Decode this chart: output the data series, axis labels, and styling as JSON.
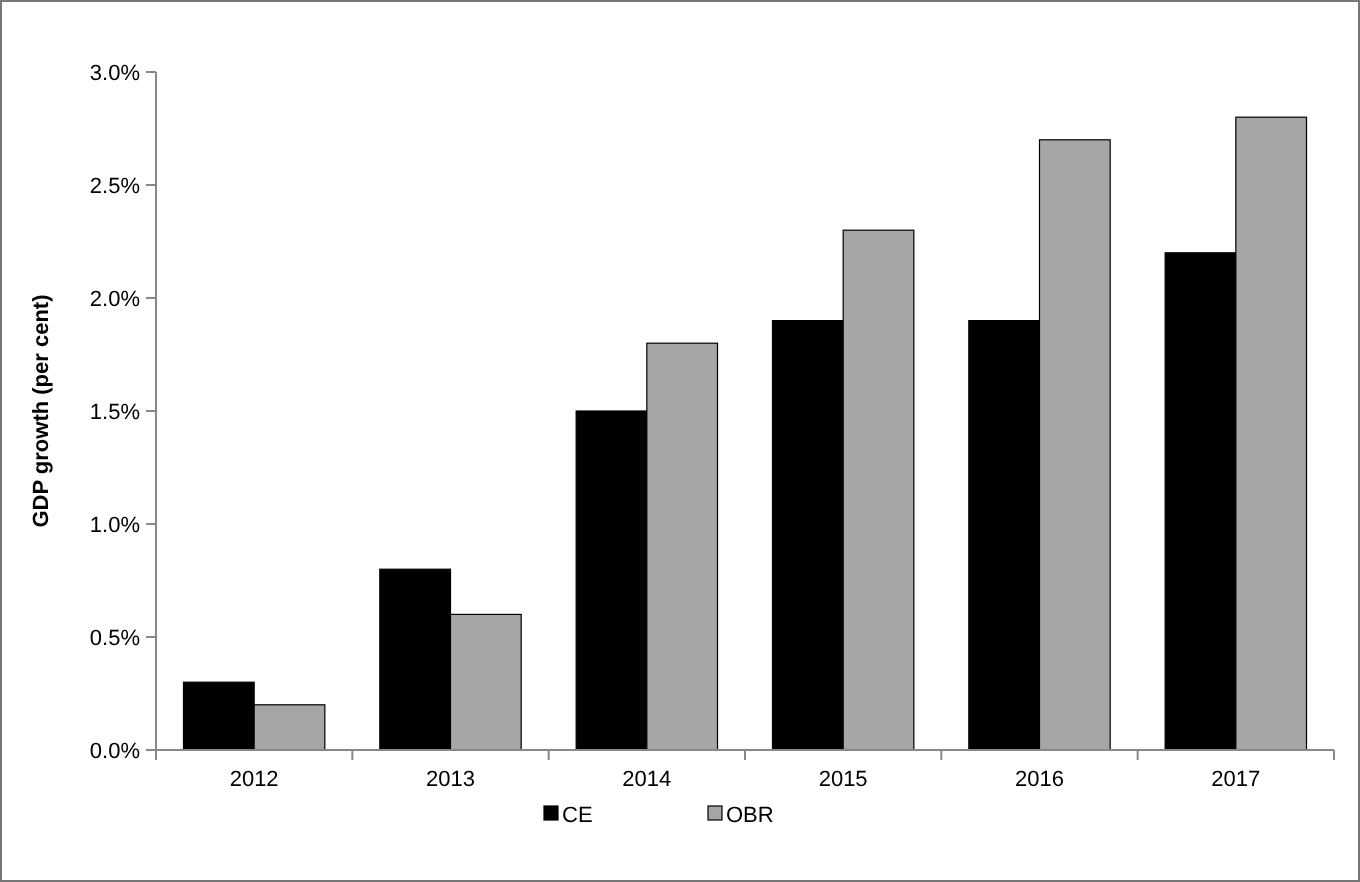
{
  "chart_data": {
    "type": "bar",
    "ylabel": "GDP growth (per cent)",
    "categories": [
      "2012",
      "2013",
      "2014",
      "2015",
      "2016",
      "2017"
    ],
    "series": [
      {
        "name": "CE",
        "color": "#000000",
        "values": [
          0.3,
          0.8,
          1.5,
          1.9,
          1.9,
          2.2
        ]
      },
      {
        "name": "OBR",
        "color": "#a6a6a6",
        "values": [
          0.2,
          0.6,
          1.8,
          2.3,
          2.7,
          2.8
        ]
      }
    ],
    "ylim": [
      0,
      3
    ],
    "yticks": [
      {
        "value": 0,
        "label": "0.0%"
      },
      {
        "value": 0.5,
        "label": "0.5%"
      },
      {
        "value": 1,
        "label": "1.0%"
      },
      {
        "value": 1.5,
        "label": "1.5%"
      },
      {
        "value": 2,
        "label": "2.0%"
      },
      {
        "value": 2.5,
        "label": "2.5%"
      },
      {
        "value": 3,
        "label": "3.0%"
      }
    ],
    "legend": "bottom",
    "grid": false
  }
}
